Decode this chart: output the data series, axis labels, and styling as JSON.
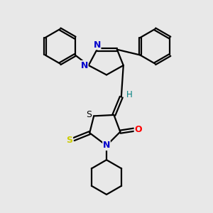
{
  "bg_color": "#e8e8e8",
  "bond_color": "#000000",
  "bond_width": 1.6,
  "atom_colors": {
    "N": "#0000cc",
    "O": "#ff0000",
    "S_yellow": "#cccc00",
    "S_black": "#000000",
    "H": "#008080"
  },
  "font_size": 8.5
}
